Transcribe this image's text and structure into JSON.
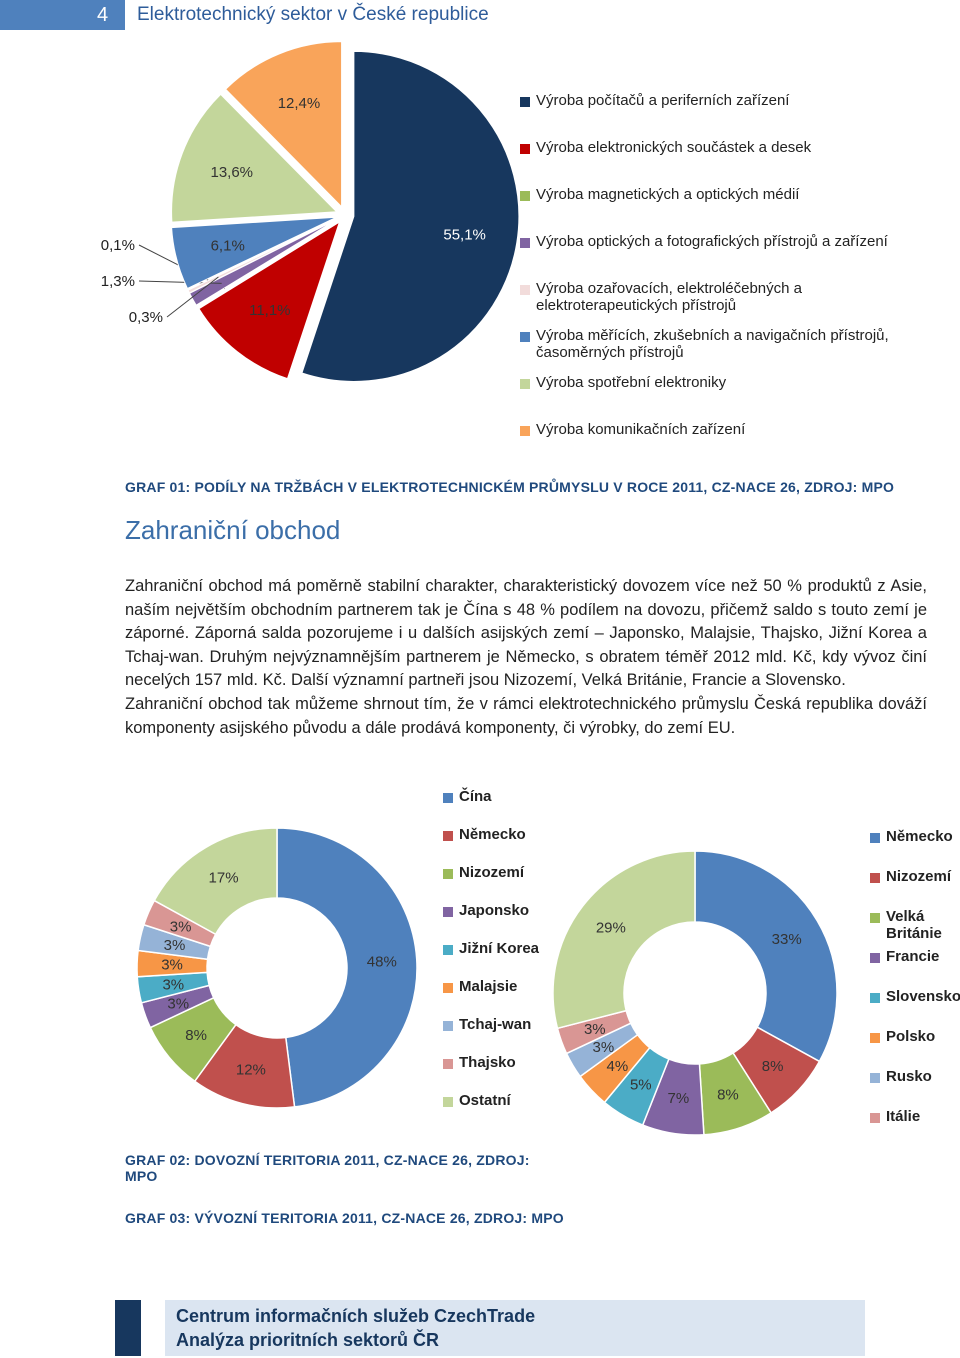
{
  "header": {
    "page_number": "4",
    "title": "Elektrotechnický sektor v České republice"
  },
  "section": {
    "heading": "Zahraniční obchod",
    "paragraphs": [
      "Zahraniční obchod má poměrně stabilní charakter, charakteristický dovozem více než 50 % produktů z Asie, naším největším obchodním partnerem tak je Čína s 48 % podílem na dovozu, přičemž saldo s touto zemí je záporné. Záporná salda pozorujeme i u dalších asijských zemí – Japonsko, Malajsie, Thajsko, Jižní Korea a Tchaj-wan. Druhým nejvýznamnějším partnerem je Německo, s obratem téměř 2012 mld. Kč, kdy vývoz činí necelých 157 mld. Kč. Další významní partneři jsou Nizozemí, Velká Británie, Francie a Slovensko.",
      "Zahraniční obchod tak můžeme shrnout tím, že v rámci elektrotechnického průmyslu Česká republika dováží komponenty asijského původu a dále prodává komponenty, či výrobky, do zemí EU."
    ]
  },
  "chart_data": [
    {
      "type": "pie",
      "exploded": true,
      "legend": "right",
      "caption": "GRAF 01: PODÍLY NA TRŽBÁCH V ELEKTROTECHNICKÉM PRŮMYSLU V ROCE 2011, CZ-NACE 26, ZDROJ: MPO",
      "categories": [
        "Výroba počítačů a periferních zařízení",
        "Výroba elektronických součástek a desek",
        "Výroba magnetických a optických médií",
        "Výroba optických a fotografických přístrojů a zařízení",
        "Výroba ozařovacích, elektroléčebných a elektroterapeutických přístrojů",
        "Výroba měřících, zkušebních a navigačních přístrojů, časoměrných přístrojů",
        "Výroba spotřební elektroniky",
        "Výroba komunikačních zařízení"
      ],
      "values": [
        55.1,
        11.1,
        0.1,
        1.3,
        0.3,
        6.1,
        13.6,
        12.4
      ],
      "value_labels": [
        "55,1%",
        "11,1%",
        "0,1%",
        "1,3%",
        "0,3%",
        "6,1%",
        "13,6%",
        "12,4%"
      ],
      "colors": [
        "#17375e",
        "#c00000",
        "#9bbb59",
        "#8064a2",
        "#f2dcdb",
        "#4f81bd",
        "#c3d69b",
        "#f9a45a"
      ]
    },
    {
      "type": "donut",
      "legend": "right",
      "caption": "GRAF 02: DOVOZNÍ TERITORIA 2011, CZ-NACE 26, ZDROJ: MPO",
      "categories": [
        "Čína",
        "Německo",
        "Nizozemí",
        "Japonsko",
        "Jižní Korea",
        "Malajsie",
        "Tchaj-wan",
        "Thajsko",
        "Ostatní"
      ],
      "values": [
        48,
        12,
        8,
        3,
        3,
        3,
        3,
        3,
        17
      ],
      "value_labels": [
        "48%",
        "12%",
        "8%",
        "3%",
        "3%",
        "3%",
        "3%",
        "3%",
        "17%"
      ],
      "colors": [
        "#4f81bd",
        "#c0504d",
        "#9bbb59",
        "#8064a2",
        "#4bacc6",
        "#f79646",
        "#95b3d7",
        "#d99694",
        "#c3d69b"
      ]
    },
    {
      "type": "donut",
      "legend": "right",
      "caption": "GRAF 03: VÝVOZNÍ TERITORIA 2011, CZ-NACE 26, ZDROJ: MPO",
      "categories": [
        "Německo",
        "Nizozemí",
        "Velká Británie",
        "Francie",
        "Slovensko",
        "Polsko",
        "Rusko",
        "Itálie",
        null
      ],
      "values": [
        33,
        8,
        8,
        7,
        5,
        4,
        3,
        3,
        29
      ],
      "value_labels": [
        "33%",
        "8%",
        "8%",
        "7%",
        "5%",
        "4%",
        "3%",
        "3%",
        "29%"
      ],
      "colors": [
        "#4f81bd",
        "#c0504d",
        "#9bbb59",
        "#8064a2",
        "#4bacc6",
        "#f79646",
        "#95b3d7",
        "#d99694",
        "#c3d69b"
      ]
    }
  ],
  "footer": {
    "lines": [
      "Centrum informačních služeb CzechTrade",
      "Analýza prioritních sektorů ČR"
    ]
  }
}
